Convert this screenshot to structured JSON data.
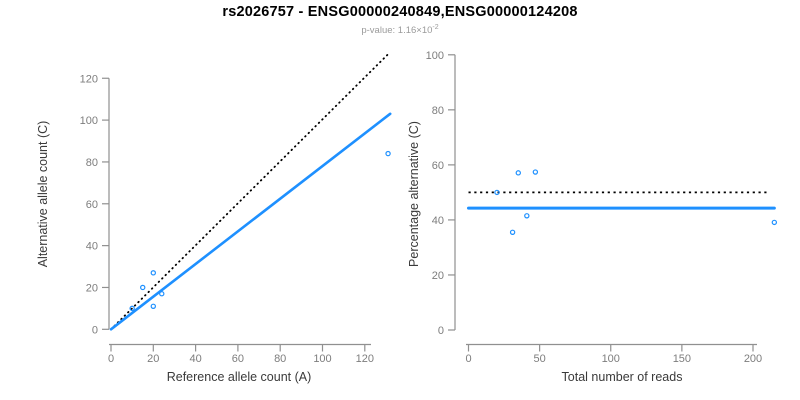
{
  "header": {
    "title": "rs2026757 - ENSG00000240849,ENSG00000124208",
    "subtitle_base": "p-value: 1.16×10",
    "subtitle_exponent": "-2"
  },
  "colors": {
    "accent_blue": "#1E90FF",
    "line_black": "#000000",
    "axis_line_gray": "#909090",
    "tick_label_gray": "#7d7d7d",
    "axis_title_gray": "#3a3a3a",
    "subtitle_gray": "#9b9b9b"
  },
  "chart_data": [
    {
      "id": "allele-counts-scatter",
      "type": "scatter",
      "xlabel": "Reference allele count (A)",
      "ylabel": "Alternative allele count (C)",
      "xlim": [
        0,
        132
      ],
      "ylim": [
        0,
        132
      ],
      "xticks": [
        0,
        20,
        40,
        60,
        80,
        100,
        120
      ],
      "yticks": [
        0,
        20,
        40,
        60,
        80,
        100,
        120
      ],
      "grid": false,
      "legend": "none",
      "marker": "open-circle",
      "points": [
        [
          10,
          10
        ],
        [
          15,
          20
        ],
        [
          20,
          11
        ],
        [
          20,
          27
        ],
        [
          24,
          17
        ],
        [
          131,
          84
        ]
      ],
      "identity_line": {
        "style": "dotted",
        "color": "black",
        "from": [
          0,
          0
        ],
        "to": [
          131,
          131.5
        ]
      },
      "fit_line": {
        "style": "solid",
        "color": "blue",
        "from": [
          0,
          0
        ],
        "to": [
          132,
          103
        ],
        "slope": 0.78
      }
    },
    {
      "id": "percentage-alternative-scatter",
      "type": "scatter",
      "xlabel": "Total number of reads",
      "ylabel": "Percentage alternative (C)",
      "xlim": [
        0,
        216
      ],
      "ylim": [
        0,
        100
      ],
      "xticks": [
        0,
        50,
        100,
        150,
        200
      ],
      "yticks": [
        0,
        20,
        40,
        60,
        80,
        100
      ],
      "grid": false,
      "legend": "none",
      "marker": "open-circle",
      "points": [
        [
          20,
          50
        ],
        [
          31,
          35.5
        ],
        [
          35,
          57.1
        ],
        [
          41,
          41.5
        ],
        [
          47,
          57.4
        ],
        [
          215,
          39.1
        ]
      ],
      "reference_line": {
        "style": "dotted",
        "color": "black",
        "y": 50,
        "x_from": 0,
        "x_to": 210
      },
      "mean_line": {
        "style": "solid",
        "color": "blue",
        "y": 44.3,
        "x_from": 0,
        "x_to": 215
      }
    }
  ]
}
